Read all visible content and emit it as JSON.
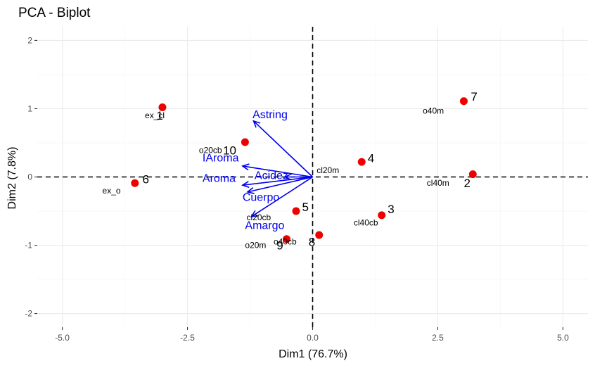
{
  "chart_data": {
    "type": "scatter",
    "title": "PCA - Biplot",
    "xlabel": "Dim1 (76.7%)",
    "ylabel": "Dim2 (7.8%)",
    "xlim": [
      -5.5,
      5.5
    ],
    "ylim": [
      -2.2,
      2.2
    ],
    "xticks": [
      -5.0,
      -2.5,
      0.0,
      2.5,
      5.0
    ],
    "xtick_labels": [
      "-5.0",
      "-2.5",
      "0.0",
      "2.5",
      "5.0"
    ],
    "yticks": [
      -2,
      -1,
      0,
      1,
      2
    ],
    "ytick_labels": [
      "-2",
      "-1",
      "0",
      "1",
      "2"
    ],
    "grid": true,
    "point_color": "#ee0000",
    "arrow_color": "#0000ee",
    "points": [
      {
        "x": -3.0,
        "y": 1.02
      },
      {
        "x": -1.35,
        "y": 0.51
      },
      {
        "x": -3.55,
        "y": -0.09
      },
      {
        "x": 0.98,
        "y": 0.22
      },
      {
        "x": -0.33,
        "y": -0.5
      },
      {
        "x": 1.38,
        "y": -0.56
      },
      {
        "x": 0.13,
        "y": -0.85
      },
      {
        "x": -0.52,
        "y": -0.91
      },
      {
        "x": 3.02,
        "y": 1.11
      },
      {
        "x": 3.2,
        "y": 0.04
      }
    ],
    "point_labels": [
      {
        "text": "ex_cl",
        "x": -3.35,
        "y": 0.9,
        "kind": "name"
      },
      {
        "text": "1",
        "x": -3.12,
        "y": 0.9,
        "kind": "num"
      },
      {
        "text": "o20cb",
        "x": -2.27,
        "y": 0.39,
        "kind": "name"
      },
      {
        "text": "10",
        "x": -1.79,
        "y": 0.39,
        "kind": "num"
      },
      {
        "text": "6",
        "x": -3.4,
        "y": -0.03,
        "kind": "num"
      },
      {
        "text": "ex_o",
        "x": -4.2,
        "y": -0.2,
        "kind": "name"
      },
      {
        "text": "cl20m",
        "x": 0.08,
        "y": 0.1,
        "kind": "name"
      },
      {
        "text": "4",
        "x": 1.1,
        "y": 0.28,
        "kind": "num"
      },
      {
        "text": "5",
        "x": -0.21,
        "y": -0.44,
        "kind": "num"
      },
      {
        "text": "cl20cb",
        "x": -1.32,
        "y": -0.59,
        "kind": "name"
      },
      {
        "text": "3",
        "x": 1.5,
        "y": -0.47,
        "kind": "num"
      },
      {
        "text": "cl40cb",
        "x": 0.82,
        "y": -0.67,
        "kind": "name"
      },
      {
        "text": "o40cb",
        "x": -0.78,
        "y": -0.95,
        "kind": "name"
      },
      {
        "text": "8",
        "x": -0.08,
        "y": -0.95,
        "kind": "num"
      },
      {
        "text": "o20m",
        "x": -1.35,
        "y": -1.0,
        "kind": "name"
      },
      {
        "text": "9",
        "x": -0.72,
        "y": -1.0,
        "kind": "num"
      },
      {
        "text": "7",
        "x": 3.16,
        "y": 1.18,
        "kind": "num"
      },
      {
        "text": "o40m",
        "x": 2.2,
        "y": 0.97,
        "kind": "name"
      },
      {
        "text": "cl40m",
        "x": 2.28,
        "y": -0.09,
        "kind": "name"
      },
      {
        "text": "2",
        "x": 3.02,
        "y": -0.09,
        "kind": "num"
      }
    ],
    "arrows": [
      {
        "name": "Astring",
        "x": -1.18,
        "y": 0.82,
        "label_x": -1.2,
        "label_y": 0.91
      },
      {
        "name": "IAroma",
        "x": -1.4,
        "y": 0.16,
        "label_x": -2.2,
        "label_y": 0.28
      },
      {
        "name": "Acidez",
        "x": -0.55,
        "y": 0.0,
        "label_x": -1.16,
        "label_y": 0.02
      },
      {
        "name": "Aroma",
        "x": -1.4,
        "y": -0.12,
        "label_x": -2.2,
        "label_y": -0.02
      },
      {
        "name": "Cuerpo",
        "x": -1.3,
        "y": -0.22,
        "label_x": -1.4,
        "label_y": -0.3
      },
      {
        "name": "Amargo",
        "x": -1.22,
        "y": -0.58,
        "label_x": -1.35,
        "label_y": -0.71
      }
    ]
  }
}
